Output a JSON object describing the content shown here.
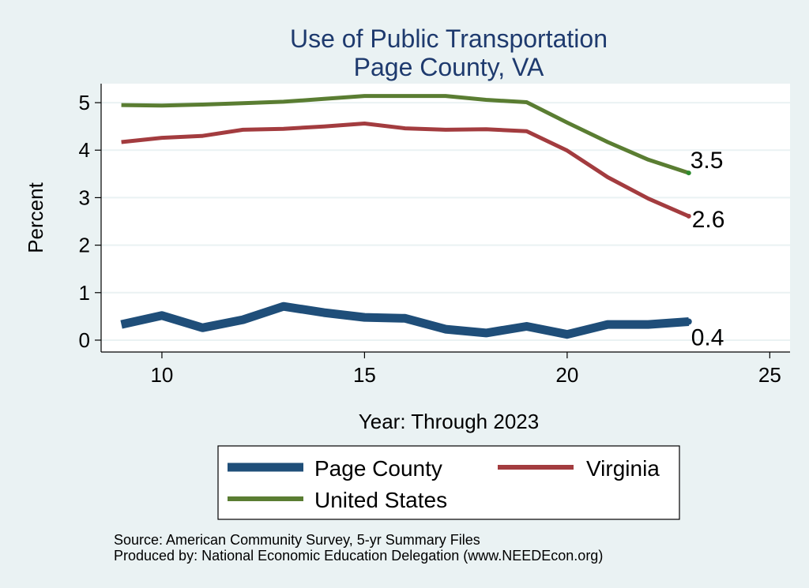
{
  "chart_data": {
    "type": "line",
    "title": "Use of Public Transportation",
    "subtitle": "Page County, VA",
    "xlabel": "Year: Through 2023",
    "ylabel": "Percent",
    "xlim": [
      8.5,
      25.5
    ],
    "ylim": [
      -0.25,
      5.4
    ],
    "xticks": [
      10,
      15,
      20,
      25
    ],
    "yticks": [
      0,
      1,
      2,
      3,
      4,
      5
    ],
    "grid": true,
    "legend_position": "bottom",
    "x": [
      9,
      10,
      11,
      12,
      13,
      14,
      15,
      16,
      17,
      18,
      19,
      20,
      21,
      22,
      23
    ],
    "series": [
      {
        "name": "Page County",
        "color": "#1f4e79",
        "values": [
          0.33,
          0.52,
          0.26,
          0.43,
          0.71,
          0.58,
          0.48,
          0.46,
          0.23,
          0.15,
          0.29,
          0.12,
          0.33,
          0.33,
          0.39
        ],
        "end_label": "0.4"
      },
      {
        "name": "Virginia",
        "color": "#a33c3f",
        "values": [
          4.17,
          4.26,
          4.3,
          4.43,
          4.45,
          4.5,
          4.56,
          4.46,
          4.43,
          4.44,
          4.4,
          3.99,
          3.43,
          2.98,
          2.61
        ],
        "end_label": "2.6"
      },
      {
        "name": "United States",
        "color": "#5a7d32",
        "values": [
          4.95,
          4.94,
          4.96,
          4.99,
          5.02,
          5.08,
          5.14,
          5.14,
          5.14,
          5.06,
          5.01,
          4.58,
          4.17,
          3.8,
          3.52
        ],
        "end_label": "3.5"
      }
    ],
    "annotations": [
      "Source: American Community Survey, 5-yr Summary Files",
      "Produced by: National Economic Education Delegation (www.NEEDEcon.org)"
    ]
  }
}
